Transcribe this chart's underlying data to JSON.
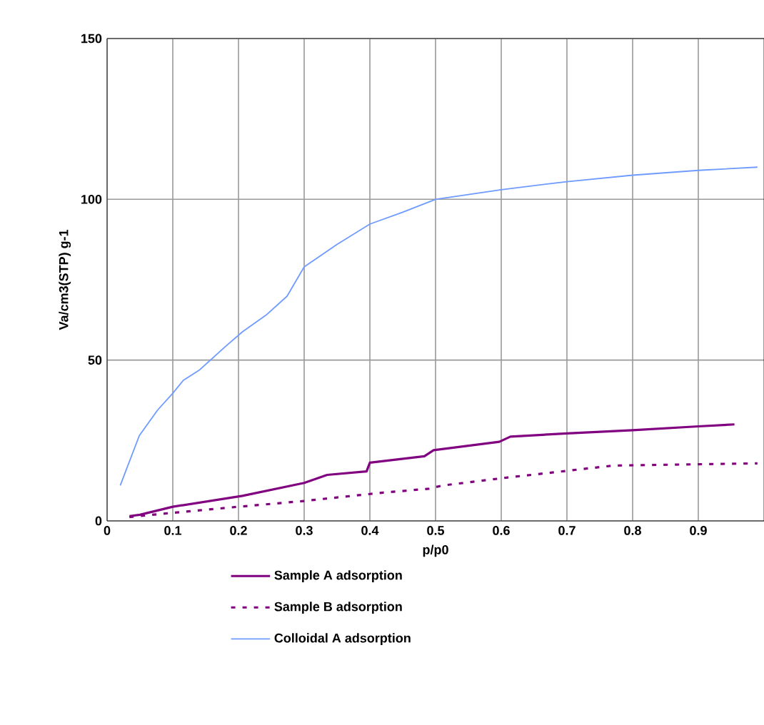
{
  "chart_data": {
    "type": "line",
    "xlabel": "p/p0",
    "ylabel": "Va/cm3(STP) g-1",
    "xlim": [
      0,
      1
    ],
    "ylim": [
      0,
      150
    ],
    "xticks": [
      0,
      0.1,
      0.2,
      0.3,
      0.4,
      0.5,
      0.6,
      0.7,
      0.8,
      0.9
    ],
    "yticks": [
      0,
      50,
      100,
      150
    ],
    "grid": true,
    "legend": "bottom",
    "marker": "none",
    "series": [
      {
        "name": "Sample A adsorption",
        "color": "#800080",
        "line_style": "solid",
        "x": [
          0.034,
          0.05,
          0.1,
          0.206,
          0.3,
          0.335,
          0.395,
          0.4,
          0.483,
          0.497,
          0.597,
          0.614,
          0.7,
          0.8,
          0.9,
          0.955
        ],
        "values": [
          1.5,
          1.9,
          4.4,
          7.8,
          11.8,
          14.3,
          15.4,
          18.1,
          20.1,
          22,
          24.6,
          26.2,
          27.2,
          28.2,
          29.4,
          30
        ]
      },
      {
        "name": "Sample B adsorption",
        "color": "#800080",
        "line_style": "dashed",
        "x": [
          0.034,
          0.083,
          0.2,
          0.3,
          0.42,
          0.49,
          0.51,
          0.61,
          0.68,
          0.77,
          0.99
        ],
        "values": [
          1.2,
          2.2,
          4.4,
          6.2,
          8.8,
          10,
          11,
          13.5,
          15.1,
          17.2,
          17.9
        ]
      },
      {
        "name": "Colloidal A adsorption",
        "color": "#6f9bff",
        "line_style": "solid",
        "x": [
          0.02,
          0.049,
          0.077,
          0.1,
          0.116,
          0.141,
          0.181,
          0.206,
          0.242,
          0.274,
          0.3,
          0.35,
          0.4,
          0.45,
          0.5,
          0.6,
          0.7,
          0.8,
          0.9,
          0.99
        ],
        "values": [
          11,
          26.5,
          34.5,
          39.7,
          43.7,
          47,
          54.4,
          58.8,
          64,
          69.9,
          79,
          86,
          92.3,
          96,
          100,
          103,
          105.5,
          107.5,
          109,
          110
        ]
      }
    ]
  }
}
